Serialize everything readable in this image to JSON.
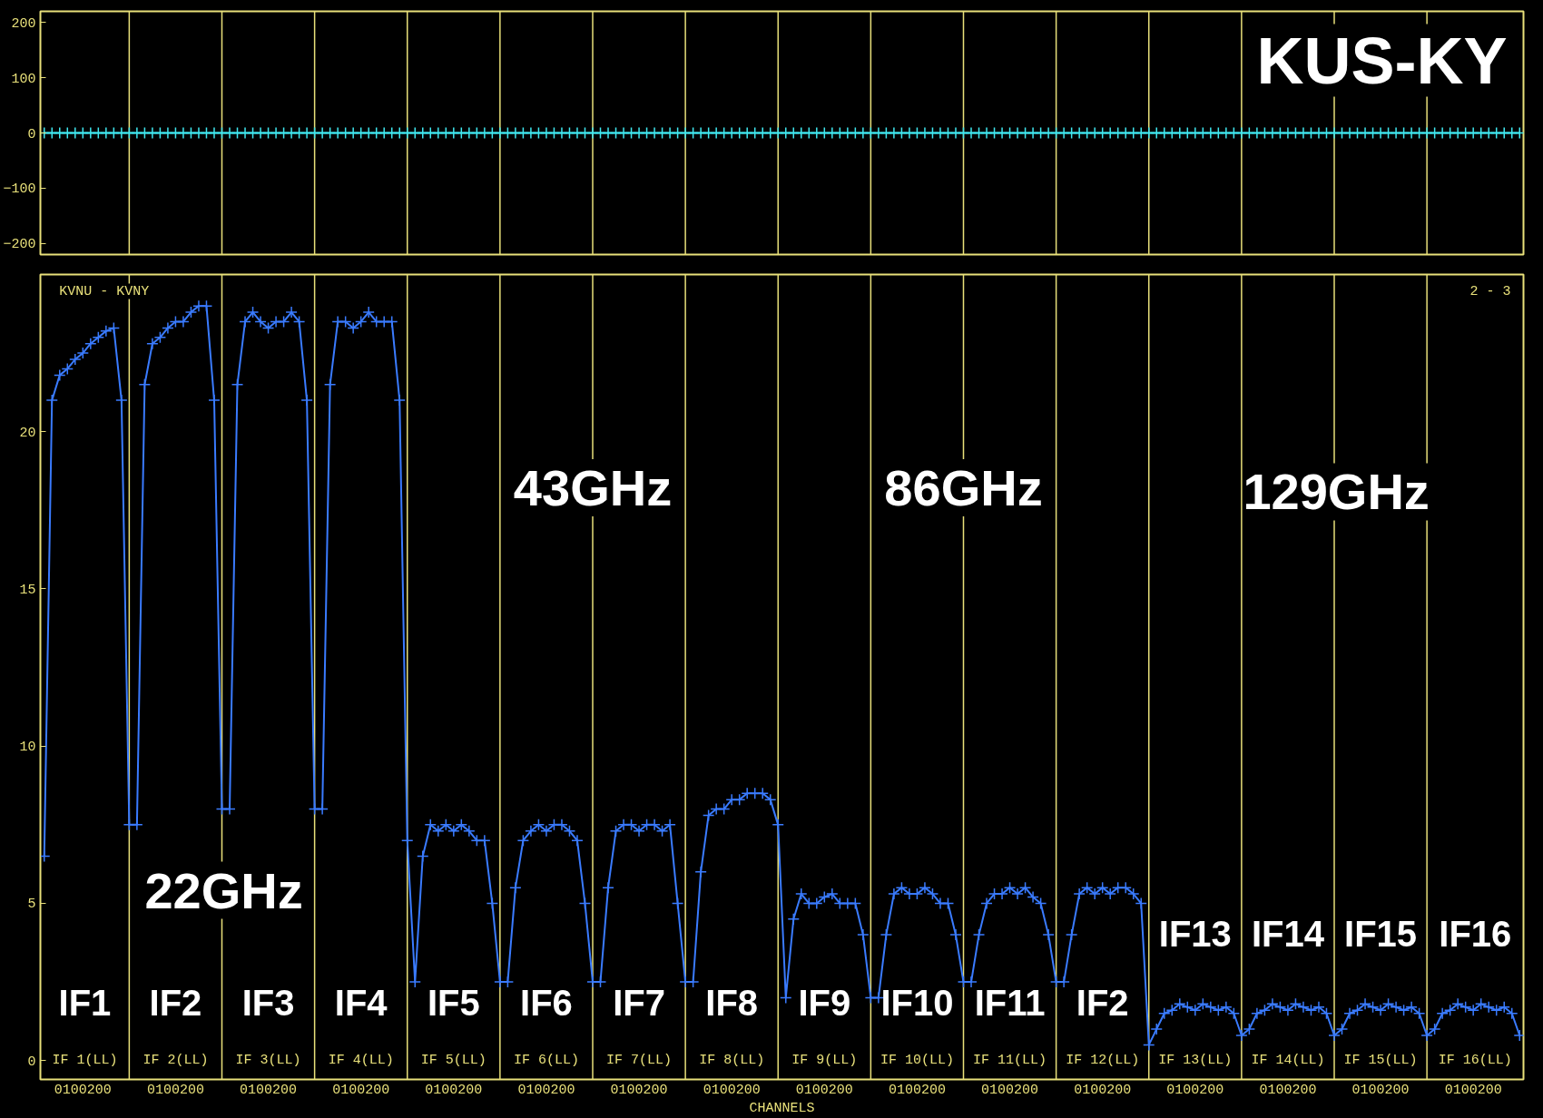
{
  "chart_data": [
    {
      "type": "line",
      "marker": "cross",
      "ylim": [
        -220,
        220
      ],
      "yticks": [
        200,
        100,
        0,
        -100,
        -200
      ],
      "tick_labels": "y",
      "categories": [
        null,
        null,
        null,
        null,
        null,
        "0100200",
        null,
        null,
        null,
        null,
        null,
        null,
        null,
        null,
        null,
        null,
        null,
        "0100200",
        null,
        null,
        null,
        null,
        null,
        null,
        null,
        null,
        null,
        null,
        null,
        "0100200",
        null,
        null,
        null,
        null,
        null,
        null,
        null,
        null,
        null,
        null,
        null,
        "0100200",
        null,
        null,
        null,
        null,
        null,
        null,
        null,
        null,
        null,
        null,
        null,
        "0100200",
        null,
        null,
        null,
        null,
        null,
        null,
        null,
        null,
        null,
        null,
        null,
        "0100200",
        null,
        null,
        null,
        null,
        null,
        null,
        null,
        null,
        null,
        null,
        null,
        "0100200",
        null,
        null,
        null,
        null,
        null,
        null,
        null,
        null,
        null,
        null,
        null,
        "0100200",
        null,
        null,
        null,
        null,
        null,
        null,
        null,
        null,
        null,
        null,
        null,
        "0100200",
        null,
        null,
        null,
        null,
        null,
        null,
        null,
        null,
        null,
        null,
        null,
        "0100200",
        null,
        null,
        null,
        null,
        null,
        null,
        null,
        null,
        null,
        null,
        null,
        "0100200",
        null,
        null,
        null,
        null,
        null,
        null,
        null,
        null,
        null,
        null,
        null,
        "0100200",
        null,
        null,
        null,
        null,
        null,
        null,
        null,
        null,
        null,
        null,
        null,
        "0100200",
        null,
        null,
        null,
        null,
        null,
        null,
        null,
        null,
        null,
        null,
        null,
        "0100200",
        null,
        null,
        null,
        null,
        null,
        null,
        null,
        null,
        null,
        null,
        null,
        "0100200",
        null,
        null,
        null,
        null,
        null,
        null,
        null,
        null,
        null,
        null,
        null,
        "0100200",
        null,
        null,
        null,
        null,
        null,
        null
      ],
      "series": [
        {
          "color": "#40e8f0",
          "values": [
            0,
            0,
            0,
            0,
            0,
            0,
            0,
            0,
            0,
            0,
            0,
            0,
            0,
            0,
            0,
            0,
            0,
            0,
            0,
            0,
            0,
            0,
            0,
            0,
            0,
            0,
            0,
            0,
            0,
            0,
            0,
            0,
            0,
            0,
            0,
            0,
            0,
            0,
            0,
            0,
            0,
            0,
            0,
            0,
            0,
            0,
            0,
            0,
            0,
            0,
            0,
            0,
            0,
            0,
            0,
            0,
            0,
            0,
            0,
            0,
            0,
            0,
            0,
            0,
            0,
            0,
            0,
            0,
            0,
            0,
            0,
            0,
            0,
            0,
            0,
            0,
            0,
            0,
            0,
            0,
            0,
            0,
            0,
            0,
            0,
            0,
            0,
            0,
            0,
            0,
            0,
            0,
            0,
            0,
            0,
            0,
            0,
            0,
            0,
            0,
            0,
            0,
            0,
            0,
            0,
            0,
            0,
            0,
            0,
            0,
            0,
            0,
            0,
            0,
            0,
            0,
            0,
            0,
            0,
            0,
            0,
            0,
            0,
            0,
            0,
            0,
            0,
            0,
            0,
            0,
            0,
            0,
            0,
            0,
            0,
            0,
            0,
            0,
            0,
            0,
            0,
            0,
            0,
            0,
            0,
            0,
            0,
            0,
            0,
            0,
            0,
            0,
            0,
            0,
            0,
            0,
            0,
            0,
            0,
            0,
            0,
            0,
            0,
            0,
            0,
            0,
            0,
            0,
            0,
            0,
            0,
            0,
            0,
            0,
            0,
            0,
            0,
            0,
            0,
            0,
            0,
            0,
            0,
            0,
            0,
            0,
            0,
            0,
            0,
            0,
            0,
            0
          ]
        }
      ],
      "annotations": [
        "KUS-KY"
      ]
    },
    {
      "type": "line",
      "marker": "cross",
      "xlabel": "CHANNELS",
      "ylim": [
        -0.6,
        25
      ],
      "yticks": [
        0,
        5,
        10,
        15,
        20
      ],
      "categories": [
        null,
        null,
        null,
        null,
        null,
        "0100200",
        null,
        null,
        null,
        null,
        null,
        null,
        null,
        null,
        null,
        null,
        null,
        "0100200",
        null,
        null,
        null,
        null,
        null,
        null,
        null,
        null,
        null,
        null,
        null,
        "0100200",
        null,
        null,
        null,
        null,
        null,
        null,
        null,
        null,
        null,
        null,
        null,
        "0100200",
        null,
        null,
        null,
        null,
        null,
        null,
        null,
        null,
        null,
        null,
        null,
        "0100200",
        null,
        null,
        null,
        null,
        null,
        null,
        null,
        null,
        null,
        null,
        null,
        "0100200",
        null,
        null,
        null,
        null,
        null,
        null,
        null,
        null,
        null,
        null,
        null,
        "0100200",
        null,
        null,
        null,
        null,
        null,
        null,
        null,
        null,
        null,
        null,
        null,
        "0100200",
        null,
        null,
        null,
        null,
        null,
        null,
        null,
        null,
        null,
        null,
        null,
        "0100200",
        null,
        null,
        null,
        null,
        null,
        null,
        null,
        null,
        null,
        null,
        null,
        "0100200",
        null,
        null,
        null,
        null,
        null,
        null,
        null,
        null,
        null,
        null,
        null,
        "0100200",
        null,
        null,
        null,
        null,
        null,
        null,
        null,
        null,
        null,
        null,
        null,
        "0100200",
        null,
        null,
        null,
        null,
        null,
        null,
        null,
        null,
        null,
        null,
        null,
        "0100200",
        null,
        null,
        null,
        null,
        null,
        null,
        null,
        null,
        null,
        null,
        null,
        "0100200",
        null,
        null,
        null,
        null,
        null,
        null,
        null,
        null,
        null,
        null,
        null,
        "0100200",
        null,
        null,
        null,
        null,
        null,
        null,
        null,
        null,
        null,
        null,
        null,
        "0100200",
        null,
        null,
        null,
        null,
        null,
        null
      ],
      "series": [
        {
          "color": "#3a7bff",
          "values": [
            6.5,
            21.0,
            21.8,
            22.0,
            22.3,
            22.5,
            22.8,
            23.0,
            23.2,
            23.3,
            21.0,
            7.5,
            7.5,
            21.5,
            22.8,
            23.0,
            23.3,
            23.5,
            23.5,
            23.8,
            24.0,
            24.0,
            21.0,
            8.0,
            8.0,
            21.5,
            23.5,
            23.8,
            23.5,
            23.3,
            23.5,
            23.5,
            23.8,
            23.5,
            21.0,
            8.0,
            8.0,
            21.5,
            23.5,
            23.5,
            23.3,
            23.5,
            23.8,
            23.5,
            23.5,
            23.5,
            21.0,
            7.0,
            2.5,
            6.5,
            7.5,
            7.3,
            7.5,
            7.3,
            7.5,
            7.3,
            7.0,
            7.0,
            5.0,
            2.5,
            2.5,
            5.5,
            7.0,
            7.3,
            7.5,
            7.3,
            7.5,
            7.5,
            7.3,
            7.0,
            5.0,
            2.5,
            2.5,
            5.5,
            7.3,
            7.5,
            7.5,
            7.3,
            7.5,
            7.5,
            7.3,
            7.5,
            5.0,
            2.5,
            2.5,
            6.0,
            7.8,
            8.0,
            8.0,
            8.3,
            8.3,
            8.5,
            8.5,
            8.5,
            8.3,
            7.5,
            2.0,
            4.5,
            5.3,
            5.0,
            5.0,
            5.2,
            5.3,
            5.0,
            5.0,
            5.0,
            4.0,
            2.0,
            2.0,
            4.0,
            5.3,
            5.5,
            5.3,
            5.3,
            5.5,
            5.3,
            5.0,
            5.0,
            4.0,
            2.5,
            2.5,
            4.0,
            5.0,
            5.3,
            5.3,
            5.5,
            5.3,
            5.5,
            5.2,
            5.0,
            4.0,
            2.5,
            2.5,
            4.0,
            5.3,
            5.5,
            5.3,
            5.5,
            5.3,
            5.5,
            5.5,
            5.3,
            5.0,
            0.5,
            1.0,
            1.5,
            1.6,
            1.8,
            1.7,
            1.6,
            1.8,
            1.7,
            1.6,
            1.7,
            1.5,
            0.8,
            1.0,
            1.5,
            1.6,
            1.8,
            1.7,
            1.6,
            1.8,
            1.7,
            1.6,
            1.7,
            1.5,
            0.8,
            1.0,
            1.5,
            1.6,
            1.8,
            1.7,
            1.6,
            1.8,
            1.7,
            1.6,
            1.7,
            1.5,
            0.8,
            1.0,
            1.5,
            1.6,
            1.8,
            1.7,
            1.6,
            1.8,
            1.7,
            1.6,
            1.7,
            1.5,
            0.8
          ]
        }
      ],
      "annotations": [
        "KVNU - KVNY",
        "2 - 3",
        "IF 1(LL)",
        "IF 2(LL)",
        "IF 3(LL)",
        "IF 4(LL)",
        "IF 5(LL)",
        "IF 6(LL)",
        "IF 7(LL)",
        "IF 8(LL)",
        "IF 9(LL)",
        "IF 10(LL)",
        "IF 11(LL)",
        "IF 12(LL)",
        "IF 13(LL)",
        "IF 14(LL)",
        "IF 15(LL)",
        "IF 16(LL)",
        "IF1",
        "IF2",
        "IF3",
        "IF4",
        "IF5",
        "IF6",
        "IF7",
        "IF8",
        "IF9",
        "IF10",
        "IF11",
        "IF2",
        "IF13",
        "IF14",
        "IF15",
        "IF16",
        "22GHz",
        "43GHz",
        "86GHz",
        "129GHz"
      ]
    }
  ]
}
